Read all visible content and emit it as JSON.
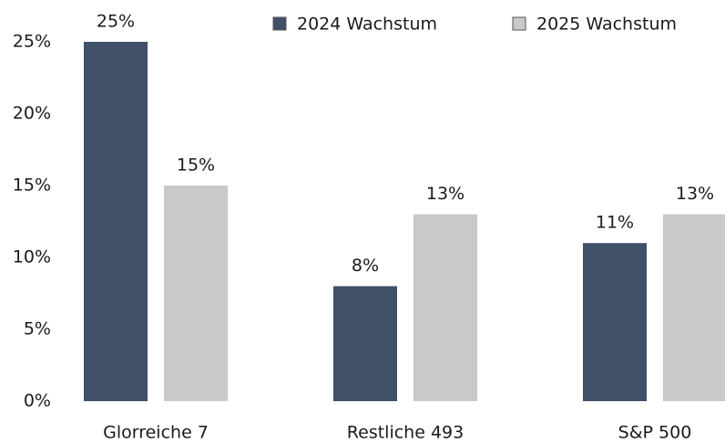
{
  "chart_data": {
    "type": "bar",
    "categories": [
      "Glorreiche 7",
      "Restliche 493",
      "S&P 500"
    ],
    "series": [
      {
        "name": "2024 Wachstum",
        "color": "#3f5068",
        "values": [
          25,
          8,
          11
        ],
        "value_labels": [
          "25%",
          "8%",
          "11%"
        ]
      },
      {
        "name": "2025 Wachstum",
        "color": "#c8c9cb",
        "values": [
          15,
          13,
          13
        ],
        "value_labels": [
          "15%",
          "13%",
          "13%"
        ]
      }
    ],
    "ylim": [
      0,
      25
    ],
    "yticks": [
      {
        "value": 0,
        "label": "0%"
      },
      {
        "value": 5,
        "label": "5%"
      },
      {
        "value": 10,
        "label": "10%"
      },
      {
        "value": 15,
        "label": "15%"
      },
      {
        "value": 20,
        "label": "20%"
      },
      {
        "value": 25,
        "label": "25%"
      }
    ],
    "legend": "top"
  }
}
